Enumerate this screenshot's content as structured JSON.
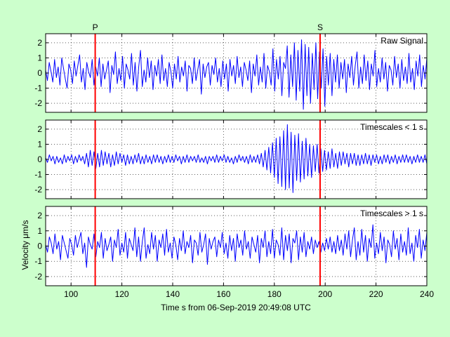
{
  "figure": {
    "background": "#ccffcc",
    "plot_background": "#ffffff",
    "signal_color": "#0000ff",
    "marker_color": "#ff0000"
  },
  "chart_data": {
    "type": "line",
    "xlabel": "Time s from 06-Sep-2019 20:49:08 UTC",
    "ylabel": "Velocity μm/s",
    "xlim": [
      90,
      240
    ],
    "x_ticks": [
      100,
      120,
      140,
      160,
      180,
      200,
      220,
      240
    ],
    "grid": true,
    "markers": [
      {
        "label": "P",
        "x": 109.5
      },
      {
        "label": "S",
        "x": 198
      }
    ],
    "panels": [
      {
        "name": "raw",
        "title": "Raw Signal",
        "ylim": [
          -2.6,
          2.6
        ],
        "y_ticks": [
          -2,
          -1,
          0,
          1,
          2
        ],
        "series": [
          {
            "x_start": 90,
            "x_end": 240,
            "values": [
              0.2,
              -0.5,
              0.7,
              0.1,
              -0.6,
              0.9,
              -0.3,
              0.4,
              -0.8,
              1.0,
              0.3,
              -0.4,
              -1.0,
              0.6,
              0.2,
              -0.7,
              0.8,
              -0.2,
              0.5,
              1.2,
              -0.6,
              0.3,
              -1.1,
              0.7,
              0.1,
              -0.3,
              0.9,
              -0.8,
              0.4,
              -0.2,
              1.0,
              -0.9,
              0.6,
              -0.4,
              0.2,
              0.8,
              -1.3,
              0.5,
              -0.1,
              1.4,
              -0.7,
              0.3,
              -0.5,
              1.1,
              -1.0,
              0.6,
              0.2,
              -0.4,
              1.3,
              -0.8,
              0.7,
              -1.2,
              0.4,
              1.5,
              -0.9,
              0.2,
              -0.6,
              1.0,
              -0.3,
              0.8,
              -1.1,
              0.5,
              -0.2,
              0.9,
              -0.7,
              1.2,
              -0.5,
              0.3,
              -0.9,
              0.7,
              0.1,
              -1.0,
              0.6,
              -0.4,
              1.1,
              -0.6,
              0.4,
              -0.2,
              0.8,
              -1.2,
              0.5,
              0.3,
              -0.7,
              1.0,
              -0.5,
              0.2,
              0.9,
              -1.4,
              0.6,
              -0.3,
              0.4,
              0.7,
              -0.8,
              0.5,
              -0.1,
              1.0,
              -0.6,
              0.3,
              -0.9,
              0.8,
              -0.4,
              0.6,
              -1.2,
              0.9,
              -0.2,
              0.5,
              -0.7,
              1.1,
              -0.3,
              0.4,
              -0.9,
              0.7,
              0.2,
              -0.5,
              0.8,
              -1.3,
              0.6,
              -0.2,
              1.2,
              -0.8,
              0.4,
              -0.6,
              1.3,
              -1.0,
              0.5,
              0.1,
              -0.8,
              1.6,
              -1.2,
              0.9,
              -0.4,
              1.1,
              -1.5,
              0.7,
              0.3,
              1.8,
              -1.6,
              1.2,
              -0.9,
              2.0,
              -1.8,
              1.5,
              -1.2,
              2.2,
              -2.4,
              1.9,
              -1.5,
              1.7,
              -2.0,
              1.3,
              -1.1,
              2.0,
              -1.7,
              1.4,
              -1.0,
              1.6,
              -2.2,
              1.1,
              -0.8,
              1.3,
              -1.5,
              0.9,
              -0.6,
              1.2,
              -1.0,
              0.7,
              -0.4,
              0.9,
              -1.3,
              0.6,
              -0.3,
              1.1,
              -0.8,
              0.5,
              1.4,
              -1.0,
              0.4,
              -0.7,
              1.2,
              -0.5,
              0.8,
              -1.1,
              0.6,
              -0.2,
              1.5,
              -0.9,
              0.3,
              -0.6,
              1.0,
              -0.4,
              0.7,
              -1.2,
              0.5,
              0.2,
              -0.8,
              1.1,
              -0.3,
              0.6,
              -1.0,
              0.9,
              -0.5,
              0.4,
              -0.7,
              1.3,
              -0.6,
              0.3,
              -1.1,
              0.8,
              -0.2,
              1.2,
              -0.9,
              0.5,
              -0.4,
              1.0
            ]
          }
        ]
      },
      {
        "name": "short",
        "title": "Timescales < 1 s",
        "ylim": [
          -2.6,
          2.6
        ],
        "y_ticks": [
          -2,
          -1,
          0,
          1,
          2
        ],
        "series": [
          {
            "x_start": 90,
            "x_end": 240,
            "values": [
              0.1,
              -0.2,
              0.3,
              -0.1,
              0.2,
              -0.3,
              0.2,
              -0.2,
              0.1,
              -0.3,
              0.3,
              -0.2,
              0.2,
              -0.1,
              0.3,
              -0.3,
              0.2,
              -0.2,
              0.3,
              -0.1,
              0.2,
              -0.3,
              0.4,
              -0.5,
              0.6,
              -0.4,
              0.5,
              -0.6,
              0.4,
              -0.5,
              0.6,
              -0.4,
              0.5,
              -0.3,
              0.4,
              -0.5,
              0.3,
              -0.4,
              0.5,
              -0.3,
              0.4,
              -0.2,
              0.3,
              -0.4,
              0.3,
              -0.3,
              0.2,
              -0.3,
              0.3,
              -0.2,
              0.4,
              -0.3,
              0.2,
              -0.3,
              0.3,
              -0.2,
              0.2,
              -0.3,
              0.3,
              -0.2,
              0.3,
              -0.2,
              0.2,
              -0.3,
              0.2,
              -0.2,
              0.3,
              -0.2,
              0.2,
              -0.2,
              0.3,
              -0.1,
              0.2,
              -0.3,
              0.2,
              -0.2,
              0.3,
              -0.2,
              0.2,
              -0.1,
              0.2,
              -0.2,
              0.3,
              -0.2,
              0.1,
              -0.2,
              0.2,
              -0.3,
              0.2,
              -0.1,
              0.2,
              -0.2,
              0.3,
              -0.2,
              0.2,
              -0.1,
              0.3,
              -0.2,
              0.2,
              -0.2,
              0.1,
              -0.3,
              0.2,
              -0.2,
              0.3,
              -0.1,
              0.2,
              -0.2,
              0.2,
              -0.3,
              0.3,
              -0.2,
              0.2,
              -0.2,
              0.3,
              -0.3,
              0.4,
              -0.5,
              0.6,
              -0.7,
              0.8,
              -0.9,
              1.1,
              -1.2,
              1.4,
              -1.6,
              1.5,
              -1.8,
              1.9,
              -2.0,
              2.3,
              -1.9,
              1.8,
              -2.2,
              1.6,
              -1.4,
              1.7,
              -1.5,
              1.2,
              -1.3,
              1.4,
              -1.1,
              1.0,
              -1.2,
              0.9,
              -0.8,
              1.0,
              -0.9,
              0.7,
              -0.8,
              0.6,
              -0.7,
              0.5,
              -0.6,
              0.7,
              -0.5,
              0.4,
              -0.6,
              0.5,
              -0.4,
              0.5,
              -0.3,
              0.4,
              -0.5,
              0.4,
              -0.3,
              0.4,
              -0.4,
              0.3,
              -0.4,
              0.3,
              -0.3,
              0.4,
              -0.3,
              0.3,
              -0.4,
              0.3,
              -0.2,
              0.3,
              -0.3,
              0.2,
              -0.3,
              0.3,
              -0.2,
              0.3,
              -0.3,
              0.2,
              -0.2,
              0.3,
              -0.3,
              0.2,
              -0.2,
              0.3,
              -0.2,
              0.3,
              -0.2,
              0.2,
              -0.3,
              0.2,
              -0.2,
              0.3,
              -0.2,
              0.2,
              -0.2,
              0.3,
              -0.3
            ]
          }
        ]
      },
      {
        "name": "long",
        "title": "Timescales > 1 s",
        "ylim": [
          -2.6,
          2.6
        ],
        "y_ticks": [
          -2,
          -1,
          0,
          1,
          2
        ],
        "series": [
          {
            "x_start": 90,
            "x_end": 240,
            "values": [
              0.1,
              -0.4,
              0.6,
              0.2,
              -0.5,
              0.8,
              -0.2,
              0.3,
              -0.9,
              0.7,
              0.2,
              -0.3,
              -0.8,
              0.5,
              0.1,
              -0.6,
              0.7,
              -0.1,
              0.4,
              0.9,
              -0.5,
              0.2,
              -1.4,
              0.6,
              0.1,
              -0.2,
              0.8,
              -0.7,
              0.3,
              -0.1,
              0.9,
              -0.8,
              0.5,
              -0.3,
              0.1,
              0.6,
              -1.0,
              0.4,
              -0.1,
              1.1,
              -0.6,
              0.2,
              -0.4,
              0.9,
              -0.8,
              0.5,
              0.1,
              -0.3,
              1.2,
              -0.7,
              0.6,
              -1.0,
              0.3,
              1.2,
              -0.8,
              0.1,
              -0.5,
              0.9,
              -0.2,
              0.7,
              -1.0,
              0.4,
              -0.1,
              0.8,
              -0.6,
              1.1,
              -0.4,
              0.2,
              -0.8,
              0.6,
              0.1,
              -0.9,
              0.5,
              -0.3,
              1.0,
              -0.5,
              0.3,
              -0.1,
              0.7,
              -1.1,
              0.4,
              0.2,
              -0.6,
              0.9,
              -0.4,
              0.1,
              0.8,
              -1.2,
              0.5,
              -0.2,
              0.3,
              0.6,
              -0.7,
              0.4,
              -0.1,
              0.9,
              -0.5,
              0.2,
              -0.8,
              0.7,
              -0.3,
              0.5,
              -1.0,
              0.8,
              -0.1,
              0.4,
              -0.6,
              1.0,
              -0.2,
              0.3,
              -0.8,
              0.6,
              0.1,
              -0.4,
              0.7,
              -1.1,
              0.5,
              -0.1,
              1.0,
              -0.7,
              0.3,
              -0.5,
              1.1,
              -0.8,
              0.4,
              0.1,
              -0.6,
              1.2,
              -0.9,
              0.7,
              -0.3,
              0.8,
              -1.1,
              0.5,
              0.2,
              1.0,
              -0.9,
              0.6,
              -0.4,
              0.9,
              -0.7,
              0.3,
              -0.2,
              0.6,
              -0.5,
              0.4,
              -0.1,
              0.3,
              -0.4,
              0.2,
              -0.3,
              0.5,
              -0.2,
              0.6,
              -0.4,
              0.3,
              -0.5,
              0.7,
              -0.3,
              0.4,
              -0.6,
              0.8,
              -0.2,
              1.0,
              -0.7,
              0.4,
              1.2,
              -0.9,
              0.3,
              -0.6,
              1.1,
              -0.4,
              0.7,
              -1.0,
              0.5,
              -0.1,
              1.4,
              -0.8,
              0.2,
              -0.5,
              0.9,
              -0.3,
              0.6,
              -1.1,
              0.4,
              0.1,
              -0.7,
              1.0,
              -0.2,
              0.5,
              -0.9,
              0.8,
              -0.4,
              0.3,
              -0.6,
              1.2,
              -0.5,
              0.2,
              -1.0,
              0.7,
              -0.1,
              1.1,
              -0.8,
              0.4,
              -0.3,
              0.9
            ]
          }
        ]
      }
    ]
  }
}
